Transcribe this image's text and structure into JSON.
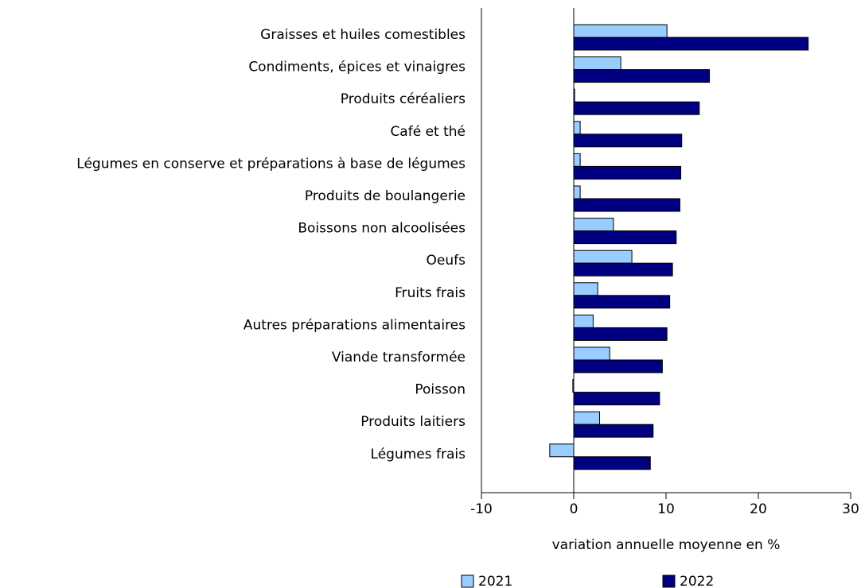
{
  "chart_data": {
    "type": "bar",
    "orientation": "horizontal",
    "x_label": "variation annuelle moyenne en %",
    "categories": [
      "Graisses et huiles comestibles",
      "Condiments, épices et vinaigres",
      "Produits céréaliers",
      "Café et thé",
      "Légumes en conserve et préparations à base de légumes",
      "Produits de boulangerie",
      "Boissons non alcoolisées",
      "Oeufs",
      "Fruits frais",
      "Autres préparations alimentaires",
      "Viande transformée",
      "Poisson",
      "Produits laitiers",
      "Légumes frais"
    ],
    "series": [
      {
        "name": "2021",
        "color": "#99ccff",
        "values": [
          10.1,
          5.1,
          0.1,
          0.7,
          0.7,
          0.7,
          4.3,
          6.3,
          2.6,
          2.1,
          3.9,
          -0.1,
          2.8,
          -2.6
        ]
      },
      {
        "name": "2022",
        "color": "#000080",
        "values": [
          25.4,
          14.7,
          13.6,
          11.7,
          11.6,
          11.5,
          11.1,
          10.7,
          10.4,
          10.1,
          9.6,
          9.3,
          8.6,
          8.3
        ]
      }
    ],
    "xlim": [
      -10,
      30
    ],
    "xticks": [
      -10,
      0,
      10,
      20,
      30
    ],
    "grid": false
  }
}
